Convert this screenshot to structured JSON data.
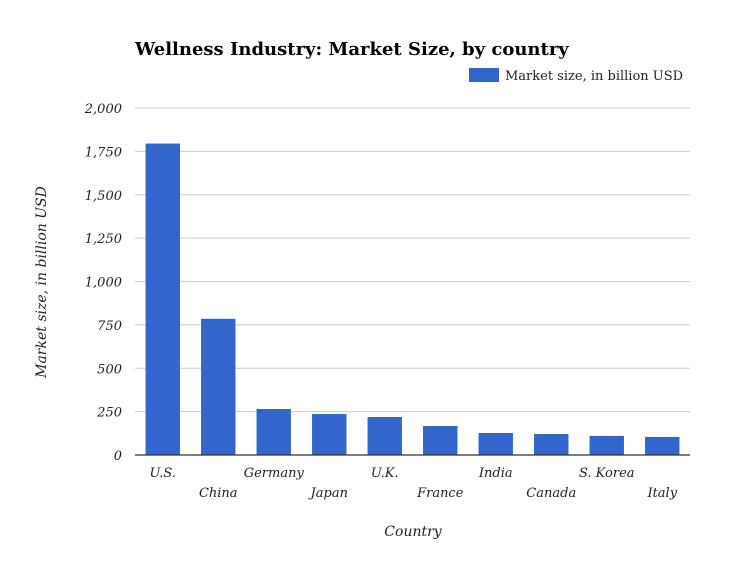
{
  "chart_data": {
    "type": "bar",
    "title": "Wellness Industry: Market Size, by country",
    "xlabel": "Country",
    "ylabel": "Market size, in billion USD",
    "categories": [
      "U.S.",
      "China",
      "Germany",
      "Japan",
      "U.K.",
      "France",
      "India",
      "Canada",
      "S. Korea",
      "Italy"
    ],
    "series": [
      {
        "name": "Market size, in billion USD",
        "values": [
          1795,
          785,
          265,
          236,
          219,
          167,
          127,
          121,
          110,
          104
        ],
        "color": "#3366cc"
      }
    ],
    "ylim": [
      0,
      2000
    ],
    "yticks": [
      0,
      250,
      500,
      750,
      1000,
      1250,
      1500,
      1750,
      2000
    ],
    "ytick_labels": [
      "0",
      "250",
      "500",
      "750",
      "1,000",
      "1,250",
      "1,500",
      "1,750",
      "2,000"
    ],
    "grid": true,
    "legend_position": "top-right"
  }
}
